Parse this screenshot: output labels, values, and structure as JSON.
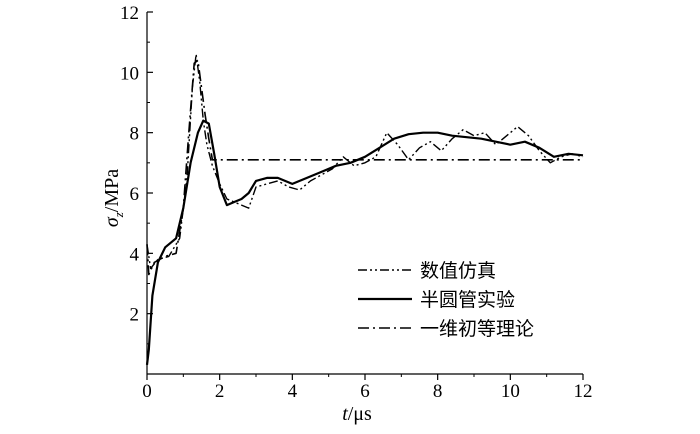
{
  "chart_data": {
    "type": "line",
    "title": "",
    "xlabel": {
      "var": "t",
      "unit": "/μs"
    },
    "ylabel": {
      "var": "σ",
      "sub": "z",
      "unit": "/MPa"
    },
    "xlim": [
      0,
      12
    ],
    "ylim": [
      0,
      12
    ],
    "x_ticks": [
      0,
      2,
      4,
      6,
      8,
      10,
      12
    ],
    "y_ticks": [
      2,
      4,
      6,
      8,
      10,
      12
    ],
    "grid": false,
    "legend_position": "lower-right",
    "series": [
      {
        "name": "数值仿真",
        "style": "dash-dot-dot",
        "x": [
          0,
          0.1,
          0.3,
          0.6,
          0.9,
          1.1,
          1.25,
          1.35,
          1.45,
          1.55,
          1.65,
          1.8,
          2.0,
          2.2,
          2.4,
          2.6,
          2.8,
          3.0,
          3.3,
          3.6,
          3.9,
          4.2,
          4.5,
          4.8,
          5.1,
          5.4,
          5.7,
          6.0,
          6.3,
          6.6,
          6.9,
          7.2,
          7.5,
          7.8,
          8.1,
          8.4,
          8.7,
          9.0,
          9.3,
          9.6,
          9.9,
          10.2,
          10.5,
          10.8,
          11.1,
          11.4,
          11.7,
          12.0
        ],
        "y": [
          4.3,
          3.5,
          3.8,
          3.9,
          4.5,
          6.5,
          9.5,
          10.6,
          9.7,
          8.4,
          7.6,
          6.9,
          6.3,
          5.8,
          5.7,
          5.6,
          5.5,
          6.2,
          6.3,
          6.4,
          6.2,
          6.1,
          6.4,
          6.6,
          6.8,
          7.2,
          6.9,
          7.0,
          7.2,
          8.0,
          7.6,
          7.1,
          7.5,
          7.7,
          7.4,
          7.8,
          8.1,
          7.9,
          8.0,
          7.6,
          7.9,
          8.2,
          7.9,
          7.4,
          7.0,
          7.2,
          7.3,
          7.2
        ]
      },
      {
        "name": "半圆管实验",
        "style": "solid",
        "x": [
          0,
          0.05,
          0.15,
          0.3,
          0.5,
          0.8,
          1.0,
          1.2,
          1.4,
          1.55,
          1.7,
          1.85,
          2.0,
          2.2,
          2.4,
          2.6,
          2.8,
          3.0,
          3.3,
          3.6,
          4.0,
          4.4,
          4.8,
          5.2,
          5.6,
          6.0,
          6.4,
          6.8,
          7.2,
          7.6,
          8.0,
          8.4,
          8.8,
          9.2,
          9.6,
          10.0,
          10.4,
          10.8,
          11.2,
          11.6,
          12.0
        ],
        "y": [
          0.3,
          0.8,
          2.6,
          3.7,
          4.2,
          4.5,
          5.5,
          7.0,
          8.0,
          8.4,
          8.3,
          7.3,
          6.2,
          5.6,
          5.7,
          5.8,
          6.0,
          6.4,
          6.5,
          6.5,
          6.3,
          6.5,
          6.7,
          6.9,
          7.0,
          7.2,
          7.5,
          7.8,
          7.95,
          8.0,
          8.0,
          7.9,
          7.85,
          7.8,
          7.7,
          7.6,
          7.7,
          7.5,
          7.2,
          7.3,
          7.25
        ]
      },
      {
        "name": "一维初等理论",
        "style": "dash-dot",
        "x": [
          0,
          0.05,
          0.2,
          0.5,
          0.8,
          1.0,
          1.15,
          1.3,
          1.4,
          1.5,
          1.6,
          1.7,
          1.8,
          12.0
        ],
        "y": [
          4.3,
          3.3,
          3.7,
          3.9,
          4.0,
          5.5,
          8.0,
          10.3,
          10.4,
          9.5,
          8.6,
          7.8,
          7.1,
          7.1
        ]
      }
    ]
  }
}
